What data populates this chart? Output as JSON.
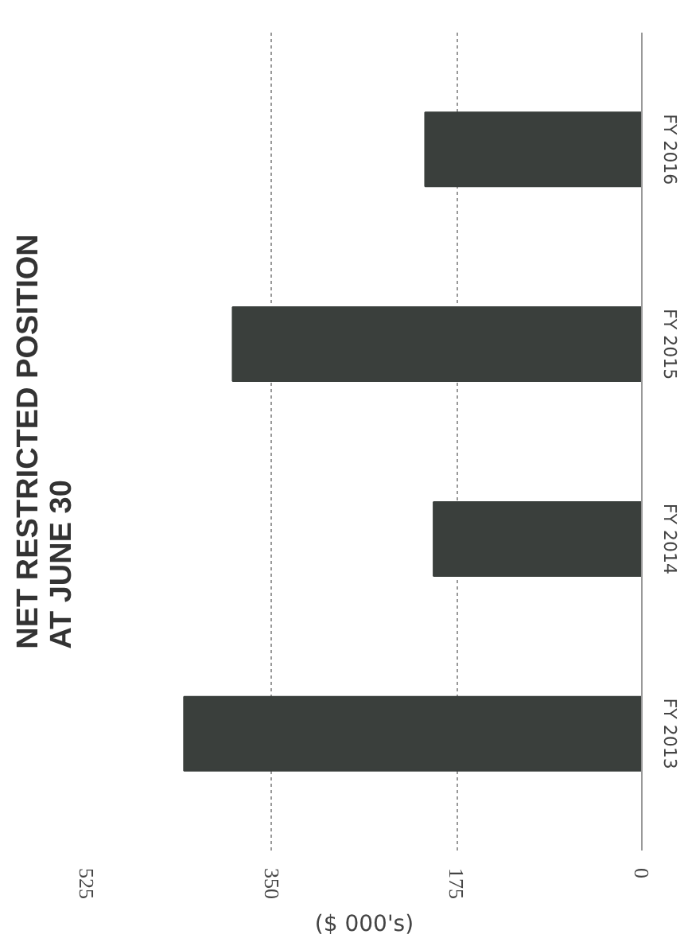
{
  "chart_data": {
    "type": "bar",
    "orientation": "horizontal",
    "title": "NET RESTRICTED POSITION\nAT JUNE 30",
    "xlabel": "($ 000's)",
    "categories": [
      "FY 2016",
      "FY 2015",
      "FY 2014",
      "FY 2013"
    ],
    "values": [
      205,
      387,
      197,
      433
    ],
    "color": "#3a3f3c",
    "xlim": [
      525,
      0
    ],
    "xticks": [
      525,
      350,
      175,
      0
    ],
    "grid": "x"
  }
}
